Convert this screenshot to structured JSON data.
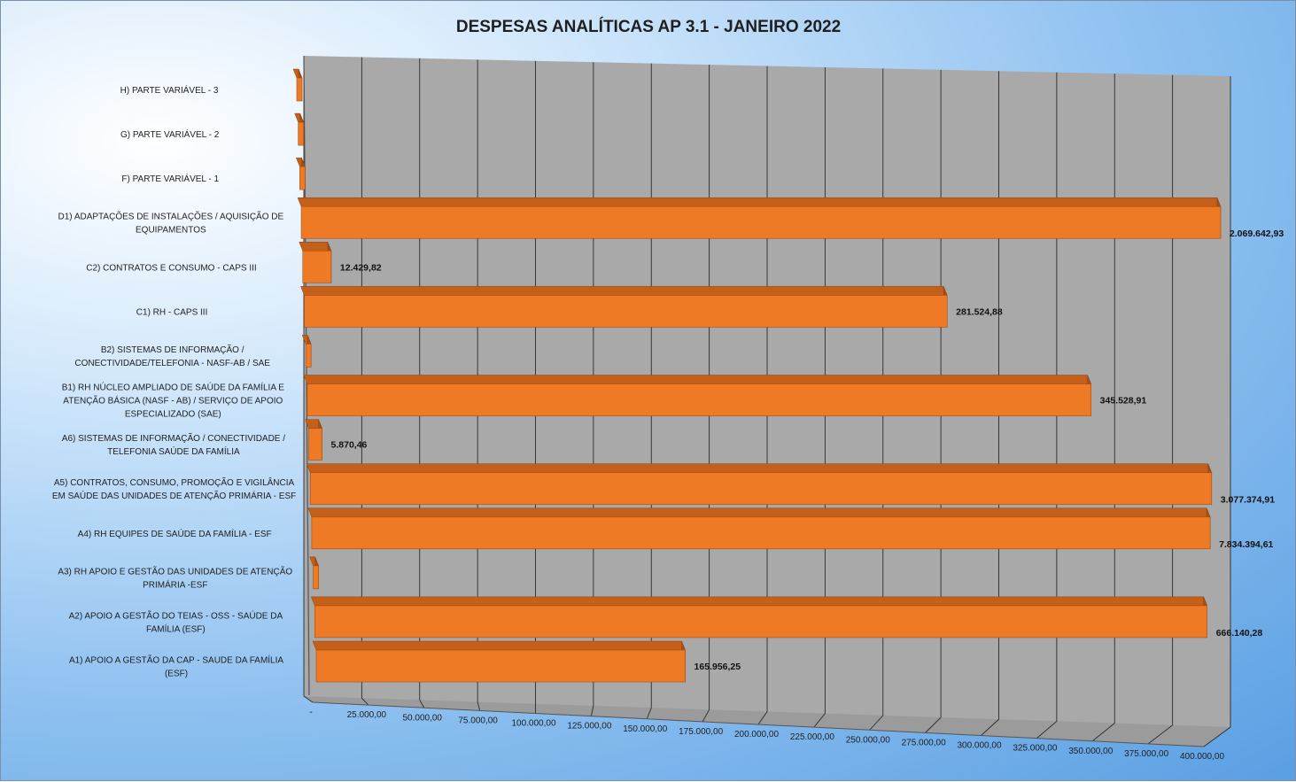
{
  "chart_data": {
    "type": "bar",
    "orientation": "horizontal",
    "style": "3d",
    "title": "DESPESAS ANALÍTICAS AP 3.1 - JANEIRO 2022",
    "xlim": [
      0,
      400000
    ],
    "grid": true,
    "legend": "none",
    "colors": {
      "bar_front": "#ee7a26",
      "bar_top": "#c4601a",
      "bar_side": "#a3501a",
      "wall": "#a9a9a9",
      "background": "#8fc1f0"
    },
    "x_tick_labels": [
      "-",
      "25.000,00",
      "50.000,00",
      "75.000,00",
      "100.000,00",
      "125.000,00",
      "150.000,00",
      "175.000,00",
      "200.000,00",
      "225.000,00",
      "250.000,00",
      "275.000,00",
      "300.000,00",
      "325.000,00",
      "350.000,00",
      "375.000,00",
      "400.000,00"
    ],
    "categories": [
      {
        "label": [
          "H) PARTE VARIÁVEL - 3"
        ],
        "value": 0,
        "value_label": ""
      },
      {
        "label": [
          "G) PARTE VARIÁVEL - 2"
        ],
        "value": 0,
        "value_label": ""
      },
      {
        "label": [
          "F) PARTE VARIÁVEL - 1"
        ],
        "value": 0,
        "value_label": ""
      },
      {
        "label": [
          "D1) ADAPTAÇÕES DE INSTALAÇÕES / AQUISIÇÃO DE",
          "EQUIPAMENTOS"
        ],
        "value": 2069642.93,
        "value_label": "2.069.642,93"
      },
      {
        "label": [
          "C2) CONTRATOS E CONSUMO - CAPS III"
        ],
        "value": 12429.82,
        "value_label": "12.429,82"
      },
      {
        "label": [
          "C1) RH - CAPS III"
        ],
        "value": 281524.88,
        "value_label": "281.524,88"
      },
      {
        "label": [
          "B2) SISTEMAS DE INFORMAÇÃO /",
          "CONECTIVIDADE/TELEFONIA - NASF-AB / SAE"
        ],
        "value": 0,
        "value_label": ""
      },
      {
        "label": [
          "B1) RH NÚCLEO AMPLIADO DE SAÚDE DA FAMÍLIA E",
          "ATENÇÃO BÁSICA (NASF - AB) / SERVIÇO DE APOIO",
          "ESPECIALIZADO (SAE)"
        ],
        "value": 345528.91,
        "value_label": "345.528,91"
      },
      {
        "label": [
          "A6) SISTEMAS DE INFORMAÇÃO / CONECTIVIDADE /",
          "TELEFONIA SAÚDE DA FAMÍLIA"
        ],
        "value": 5870.46,
        "value_label": "5.870,46"
      },
      {
        "label": [
          "A5) CONTRATOS, CONSUMO, PROMOÇÃO E VIGILÂNCIA",
          "EM SAÚDE DAS UNIDADES DE ATENÇÃO PRIMÁRIA - ESF"
        ],
        "value": 3077374.91,
        "value_label": "3.077.374,91"
      },
      {
        "label": [
          "A4) RH EQUIPES DE SAÚDE DA FAMÍLIA - ESF"
        ],
        "value": 7834394.61,
        "value_label": "7.834.394,61"
      },
      {
        "label": [
          "A3) RH APOIO E GESTÃO DAS UNIDADES DE ATENÇÃO",
          "PRIMÁRIA -ESF"
        ],
        "value": 0,
        "value_label": ""
      },
      {
        "label": [
          "A2) APOIO A GESTÃO DO TEIAS - OSS - SAÚDE DA",
          "FAMÍLIA (ESF)"
        ],
        "value": 666140.28,
        "value_label": "666.140,28"
      },
      {
        "label": [
          "A1) APOIO A GESTÃO DA CAP - SAUDE DA FAMÍLIA",
          "(ESF)"
        ],
        "value": 165956.25,
        "value_label": "165.956,25"
      }
    ]
  }
}
